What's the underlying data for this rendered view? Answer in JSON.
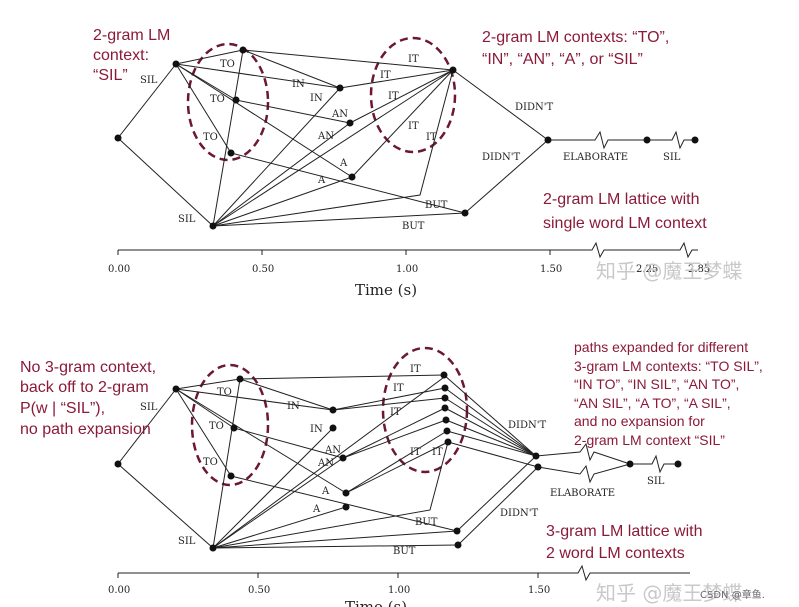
{
  "top": {
    "annotations": {
      "context_left": [
        "2-gram LM",
        "context:",
        "“SIL”"
      ],
      "contexts_right": [
        "2-gram LM contexts: “TO”,",
        "“IN”, “AN”, “A”, or “SIL”"
      ],
      "lattice": [
        "2-gram LM lattice with",
        "single word LM context"
      ]
    },
    "labels": {
      "sil_top": "SIL",
      "sil_bottom": "SIL",
      "to1": "TO",
      "to2": "TO",
      "to3": "TO",
      "in1": "IN",
      "in2": "IN",
      "an1": "AN",
      "an2": "AN",
      "a1": "A",
      "a2": "A",
      "it1": "IT",
      "it2": "IT",
      "it3": "IT",
      "it4": "IT",
      "it5": "IT",
      "but1": "BUT",
      "but2": "BUT",
      "didnt1": "DIDN'T",
      "didnt2": "DIDN'T",
      "elaborate": "ELABORATE",
      "sil_end": "SIL"
    },
    "axis": {
      "ticks": [
        "0.00",
        "0.50",
        "1.00",
        "1.50",
        "2.25",
        "2.85"
      ],
      "title": "Time (s)"
    }
  },
  "bottom": {
    "annotations": {
      "no_context": [
        "No 3-gram context,",
        "back off to 2-gram",
        "P(w | “SIL”),",
        "no path expansion"
      ],
      "expanded": [
        "paths expanded for different",
        "3-gram LM contexts: “TO SIL”,",
        "“IN TO”, “IN SIL”, “AN TO”,",
        "“AN SIL”, “A TO”, “A SIL”,",
        "and no expansion for",
        "2-gram LM context “SIL”"
      ],
      "lattice": [
        "3-gram LM lattice with",
        "2 word LM contexts"
      ]
    },
    "labels": {
      "sil_top": "SIL",
      "sil_bottom": "SIL",
      "to1": "TO",
      "to2": "TO",
      "to3": "TO",
      "in1": "IN",
      "in2": "IN",
      "an1": "AN",
      "an2": "AN",
      "a1": "A",
      "a2": "A",
      "it1": "IT",
      "it2": "IT",
      "it3": "IT",
      "it4": "IT",
      "it5": "IT",
      "but1": "BUT",
      "but2": "BUT",
      "didnt1": "DIDN'T",
      "didnt2": "DIDN'T",
      "elaborate": "ELABORATE",
      "sil_end": "SIL"
    },
    "axis": {
      "ticks": [
        "0.00",
        "0.50",
        "1.00",
        "1.50"
      ],
      "title": "Time (s)"
    }
  },
  "watermarks": {
    "top": "知乎 @魔王梦蝶",
    "bottom": "知乎 @魔王梦蝶",
    "csdn": "CSDN @章鱼."
  }
}
